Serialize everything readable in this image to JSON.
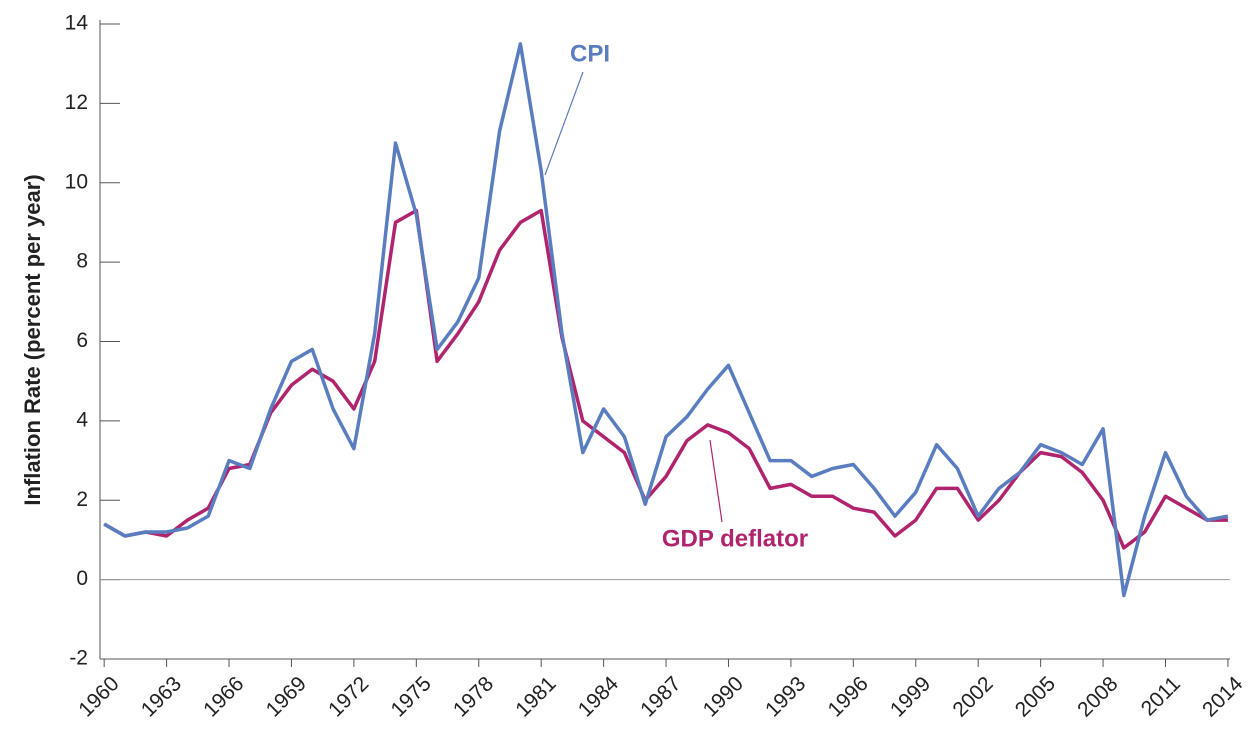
{
  "chart_data": {
    "type": "line",
    "y_label": "Inflation Rate (percent per year)",
    "x": [
      1960,
      1961,
      1962,
      1963,
      1964,
      1965,
      1966,
      1967,
      1968,
      1969,
      1970,
      1971,
      1972,
      1973,
      1974,
      1975,
      1976,
      1977,
      1978,
      1979,
      1980,
      1981,
      1982,
      1983,
      1984,
      1985,
      1986,
      1987,
      1988,
      1989,
      1990,
      1991,
      1992,
      1993,
      1994,
      1995,
      1996,
      1997,
      1998,
      1999,
      2000,
      2001,
      2002,
      2003,
      2004,
      2005,
      2006,
      2007,
      2008,
      2009,
      2010,
      2011,
      2012,
      2013,
      2014
    ],
    "series": [
      {
        "name": "CPI",
        "color": "#5a7dbf",
        "values": [
          1.4,
          1.1,
          1.2,
          1.2,
          1.3,
          1.6,
          3.0,
          2.8,
          4.3,
          5.5,
          5.8,
          4.3,
          3.3,
          6.2,
          11.0,
          9.2,
          5.8,
          6.5,
          7.6,
          11.3,
          13.5,
          10.3,
          6.2,
          3.2,
          4.3,
          3.6,
          1.9,
          3.6,
          4.1,
          4.8,
          5.4,
          4.2,
          3.0,
          3.0,
          2.6,
          2.8,
          2.9,
          2.3,
          1.6,
          2.2,
          3.4,
          2.8,
          1.6,
          2.3,
          2.7,
          3.4,
          3.2,
          2.9,
          3.8,
          -0.4,
          1.6,
          3.2,
          2.1,
          1.5,
          1.6
        ]
      },
      {
        "name": "GDP deflator",
        "color": "#b0246e",
        "values": [
          1.4,
          1.1,
          1.2,
          1.1,
          1.5,
          1.8,
          2.8,
          2.9,
          4.2,
          4.9,
          5.3,
          5.0,
          4.3,
          5.5,
          9.0,
          9.3,
          5.5,
          6.2,
          7.0,
          8.3,
          9.0,
          9.3,
          6.1,
          4.0,
          3.6,
          3.2,
          2.0,
          2.6,
          3.5,
          3.9,
          3.7,
          3.3,
          2.3,
          2.4,
          2.1,
          2.1,
          1.8,
          1.7,
          1.1,
          1.5,
          2.3,
          2.3,
          1.5,
          2.0,
          2.7,
          3.2,
          3.1,
          2.7,
          2.0,
          0.8,
          1.2,
          2.1,
          1.8,
          1.5,
          1.5
        ]
      }
    ],
    "xlim": [
      1959.8,
      2014.1
    ],
    "xticks": [
      1960,
      1963,
      1966,
      1969,
      1972,
      1975,
      1978,
      1981,
      1984,
      1987,
      1990,
      1993,
      1996,
      1999,
      2002,
      2005,
      2008,
      2011,
      2014
    ],
    "ylim": [
      -2,
      14
    ],
    "yticks": [
      -2,
      0,
      2,
      4,
      6,
      8,
      10,
      12,
      14
    ],
    "zero_line": true
  }
}
